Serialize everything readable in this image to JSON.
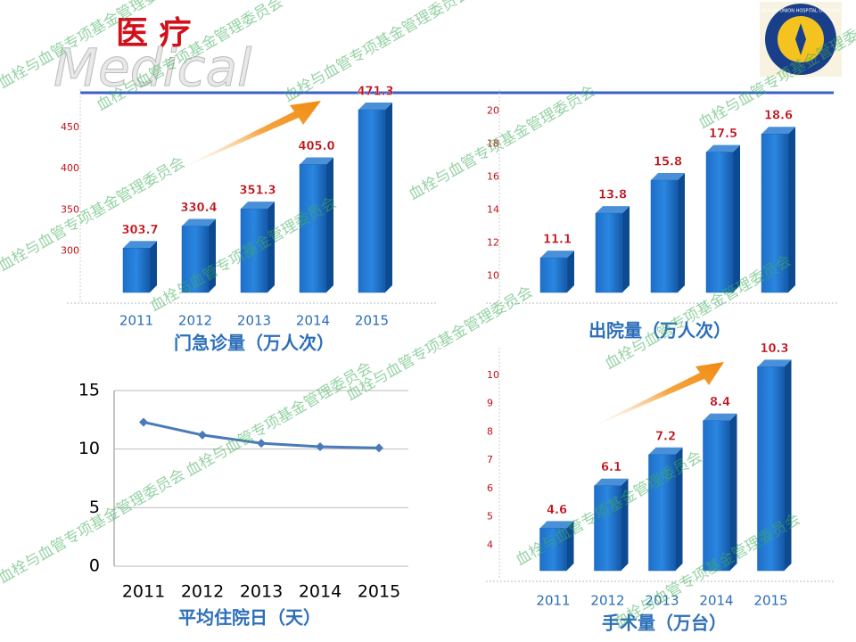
{
  "header": {
    "title": "医 疗",
    "subtitle": "Medical",
    "logo_text": "WUHAN UNION HOSPITAL OF CHINA"
  },
  "watermark": "血栓与血管专项基金管理委员会",
  "chart_data": [
    {
      "type": "bar",
      "title": "门急诊量（万人次）",
      "categories": [
        "2011",
        "2012",
        "2013",
        "2014",
        "2015"
      ],
      "values": [
        303.7,
        330.4,
        351.3,
        405,
        471.3
      ],
      "value_labels": [
        "303.7",
        "330.4",
        "351.3",
        "405.0",
        "471.3"
      ],
      "color": "#1565c0",
      "ylim": [
        250,
        480
      ],
      "yticks": [
        300,
        350,
        400,
        450
      ]
    },
    {
      "type": "bar",
      "title": "出院量（万人次）",
      "values": [
        11.1,
        13.8,
        15.8,
        17.5,
        18.6
      ],
      "value_labels": [
        "11.1",
        "13.8",
        "15.8",
        "17.5",
        "18.6"
      ],
      "color": "#1565c0",
      "ylim": [
        9,
        20.5
      ],
      "yticks": [
        10,
        12,
        14,
        16,
        18,
        20
      ]
    },
    {
      "type": "line",
      "title": "平均住院日（天）",
      "categories": [
        "2011",
        "2012",
        "2013",
        "2014",
        "2015"
      ],
      "values": [
        12.3,
        11.2,
        10.5,
        10.2,
        10.1
      ],
      "color": "#4a7ab8",
      "ylim": [
        0,
        15
      ],
      "yticks": [
        0,
        5,
        10,
        15
      ],
      "grid": true
    },
    {
      "type": "bar",
      "title": "手术量（万台）",
      "categories": [
        "2011",
        "2012",
        "2013",
        "2014",
        "2015"
      ],
      "values": [
        4.6,
        6.1,
        7.2,
        8.4,
        10.3
      ],
      "value_labels": [
        "4.6",
        "6.1",
        "7.2",
        "8.4",
        "10.3"
      ],
      "color": "#1565c0",
      "ylim": [
        3.1,
        10.5
      ],
      "yticks": [
        4,
        5,
        6,
        7,
        8,
        9,
        10
      ]
    }
  ]
}
